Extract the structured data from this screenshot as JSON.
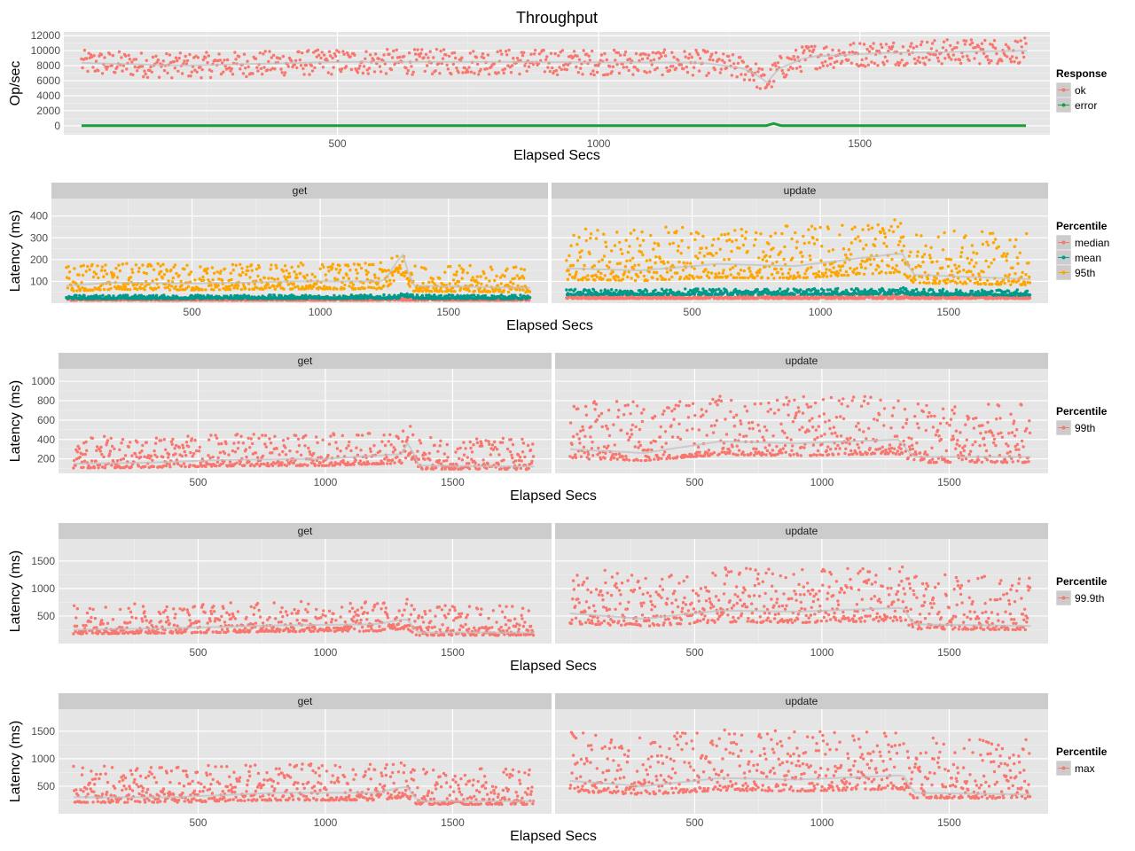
{
  "chart_data": [
    {
      "type": "scatter",
      "title": "Throughput",
      "xlabel": "Elapsed Secs",
      "ylabel": "Op/sec",
      "xlim": [
        0,
        1840
      ],
      "ylim": [
        -1200,
        12500
      ],
      "xticks": [
        500,
        1000,
        1500
      ],
      "yticks": [
        0,
        2000,
        4000,
        6000,
        8000,
        10000,
        12000
      ],
      "grid": true,
      "facets": [
        ""
      ],
      "legend": {
        "title": "Response",
        "position": "right"
      },
      "series": [
        {
          "name": "ok",
          "color": "#F8766D",
          "smooth": true,
          "points": [
            {
              "facet": 0,
              "base": 8400,
              "spread": 1700,
              "curve": [
                [
                  0,
                  8400
                ],
                [
                  200,
                  8000
                ],
                [
                  500,
                  8500
                ],
                [
                  800,
                  8500
                ],
                [
                  1200,
                  8400
                ],
                [
                  1290,
                  7500
                ],
                [
                  1320,
                  5600
                ],
                [
                  1345,
                  7600
                ],
                [
                  1400,
                  9200
                ],
                [
                  1550,
                  9700
                ],
                [
                  1820,
                  10000
                ]
              ]
            }
          ]
        },
        {
          "name": "error",
          "color": "#1B9E3A",
          "line": true,
          "points": [
            {
              "facet": 0,
              "base": 0,
              "spread": 20,
              "curve": [
                [
                  0,
                  0
                ],
                [
                  1320,
                  0
                ],
                [
                  1335,
                  300
                ],
                [
                  1350,
                  0
                ],
                [
                  1820,
                  0
                ]
              ]
            }
          ]
        }
      ]
    },
    {
      "type": "scatter",
      "xlabel": "Elapsed Secs",
      "ylabel": "Latency (ms)",
      "xlim": [
        0,
        1840
      ],
      "ylim": [
        0,
        480
      ],
      "xticks": [
        500,
        1000,
        1500
      ],
      "yticks": [
        100,
        200,
        300,
        400
      ],
      "grid": true,
      "facets": [
        "get",
        "update"
      ],
      "legend": {
        "title": "Percentile",
        "position": "right"
      },
      "series": [
        {
          "name": "median",
          "color": "#F8766D",
          "points": [
            {
              "facet": 0,
              "base": 18,
              "spread": 6,
              "curve": [
                [
                  0,
                  18
                ],
                [
                  1820,
                  18
                ]
              ]
            },
            {
              "facet": 1,
              "base": 30,
              "spread": 8,
              "curve": [
                [
                  0,
                  30
                ],
                [
                  1820,
                  30
                ]
              ]
            }
          ]
        },
        {
          "name": "mean",
          "color": "#00998A",
          "points": [
            {
              "facet": 0,
              "base": 28,
              "spread": 8,
              "curve": [
                [
                  0,
                  28
                ],
                [
                  1300,
                  30
                ],
                [
                  1330,
                  50
                ],
                [
                  1360,
                  30
                ],
                [
                  1820,
                  28
                ]
              ]
            },
            {
              "facet": 1,
              "base": 55,
              "spread": 12,
              "curve": [
                [
                  0,
                  55
                ],
                [
                  1300,
                  60
                ],
                [
                  1320,
                  75
                ],
                [
                  1350,
                  55
                ],
                [
                  1820,
                  50
                ]
              ]
            }
          ]
        },
        {
          "name": "95th",
          "color": "#FFA500",
          "smooth": true,
          "points": [
            {
              "facet": 0,
              "base": 75,
              "spread": 55,
              "curve": [
                [
                  0,
                  80
                ],
                [
                  200,
                  95
                ],
                [
                  500,
                  90
                ],
                [
                  900,
                  100
                ],
                [
                  1250,
                  100
                ],
                [
                  1320,
                  230
                ],
                [
                  1360,
                  80
                ],
                [
                  1820,
                  70
                ]
              ]
            },
            {
              "facet": 1,
              "base": 140,
              "spread": 110,
              "curve": [
                [
                  0,
                  160
                ],
                [
                  300,
                  150
                ],
                [
                  600,
                  180
                ],
                [
                  900,
                  170
                ],
                [
                  1320,
                  230
                ],
                [
                  1360,
                  130
                ],
                [
                  1820,
                  110
                ]
              ]
            }
          ]
        }
      ]
    },
    {
      "type": "scatter",
      "xlabel": "Elapsed Secs",
      "ylabel": "Latency (ms)",
      "xlim": [
        0,
        1840
      ],
      "ylim": [
        50,
        1130
      ],
      "xticks": [
        500,
        1000,
        1500
      ],
      "yticks": [
        200,
        400,
        600,
        800,
        1000
      ],
      "grid": true,
      "facets": [
        "get",
        "update"
      ],
      "legend": {
        "title": "Percentile",
        "position": "right"
      },
      "series": [
        {
          "name": "99th",
          "color": "#F8766D",
          "smooth": true,
          "points": [
            {
              "facet": 0,
              "base": 150,
              "spread": 150,
              "curve": [
                [
                  0,
                  150
                ],
                [
                  300,
                  160
                ],
                [
                  600,
                  190
                ],
                [
                  1000,
                  200
                ],
                [
                  1300,
                  250
                ],
                [
                  1330,
                  400
                ],
                [
                  1360,
                  130
                ],
                [
                  1820,
                  120
                ]
              ]
            },
            {
              "facet": 1,
              "base": 260,
              "spread": 280,
              "curve": [
                [
                  0,
                  300
                ],
                [
                  300,
                  260
                ],
                [
                  600,
                  380
                ],
                [
                  900,
                  360
                ],
                [
                  1300,
                  400
                ],
                [
                  1360,
                  220
                ],
                [
                  1820,
                  220
                ]
              ]
            }
          ]
        }
      ]
    },
    {
      "type": "scatter",
      "xlabel": "Elapsed Secs",
      "ylabel": "Latency (ms)",
      "xlim": [
        0,
        1840
      ],
      "ylim": [
        0,
        1900
      ],
      "xticks": [
        500,
        1000,
        1500
      ],
      "yticks": [
        500,
        1000,
        1500
      ],
      "grid": true,
      "facets": [
        "get",
        "update"
      ],
      "legend": {
        "title": "Percentile",
        "position": "right"
      },
      "series": [
        {
          "name": "99.9th",
          "color": "#F8766D",
          "smooth": true,
          "points": [
            {
              "facet": 0,
              "base": 250,
              "spread": 250,
              "curve": [
                [
                  0,
                  250
                ],
                [
                  400,
                  280
                ],
                [
                  800,
                  330
                ],
                [
                  1200,
                  350
                ],
                [
                  1320,
                  450
                ],
                [
                  1360,
                  200
                ],
                [
                  1820,
                  200
                ]
              ]
            },
            {
              "facet": 1,
              "base": 450,
              "spread": 450,
              "curve": [
                [
                  0,
                  550
                ],
                [
                  300,
                  450
                ],
                [
                  600,
                  600
                ],
                [
                  900,
                  580
                ],
                [
                  1320,
                  650
                ],
                [
                  1360,
                  350
                ],
                [
                  1820,
                  320
                ]
              ]
            }
          ]
        }
      ]
    },
    {
      "type": "scatter",
      "xlabel": "Elapsed Secs",
      "ylabel": "Latency (ms)",
      "xlim": [
        0,
        1840
      ],
      "ylim": [
        0,
        1900
      ],
      "xticks": [
        500,
        1000,
        1500
      ],
      "yticks": [
        500,
        1000,
        1500
      ],
      "grid": true,
      "facets": [
        "get",
        "update"
      ],
      "legend": {
        "title": "Percentile",
        "position": "right"
      },
      "series": [
        {
          "name": "max",
          "color": "#F8766D",
          "smooth": true,
          "points": [
            {
              "facet": 0,
              "base": 280,
              "spread": 300,
              "curve": [
                [
                  0,
                  300
                ],
                [
                  400,
                  300
                ],
                [
                  800,
                  380
                ],
                [
                  1200,
                  380
                ],
                [
                  1320,
                  500
                ],
                [
                  1360,
                  230
                ],
                [
                  1820,
                  230
                ]
              ]
            },
            {
              "facet": 1,
              "base": 500,
              "spread": 500,
              "curve": [
                [
                  0,
                  600
                ],
                [
                  300,
                  500
                ],
                [
                  600,
                  650
                ],
                [
                  900,
                  620
                ],
                [
                  1320,
                  700
                ],
                [
                  1360,
                  380
                ],
                [
                  1820,
                  350
                ]
              ]
            }
          ]
        }
      ]
    }
  ]
}
